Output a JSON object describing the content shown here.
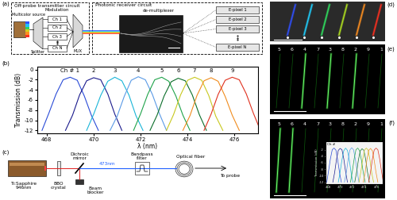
{
  "panel_labels": [
    "(a)",
    "(b)",
    "(c)",
    "(d)",
    "(e)",
    "(f)"
  ],
  "diagram_a": {
    "transmitter_title": "Off-probe transmitter circuit",
    "source": "Multicolor source",
    "modulation": "Modulation",
    "splitter": "Splitter",
    "channels": [
      "Ch 1",
      "Ch 2",
      "Ch 3",
      "Ch N"
    ],
    "mux": "MUX",
    "receiver_title": "Photonic receiver circuit",
    "demux": "de-multiplexer",
    "pixels": [
      "E-pixel 1",
      "E-pixel 2",
      "E-pixel 3",
      "E-pixel N"
    ]
  },
  "chart_data": {
    "type": "line",
    "xlabel": "λ (nm)",
    "ylabel": "Transmission (dB)",
    "xlim": [
      467.6,
      477.0
    ],
    "ylim": [
      -12.6,
      0.6
    ],
    "xticks": [
      468,
      470,
      472,
      474,
      476
    ],
    "yticks": [
      0,
      -2,
      -4,
      -6,
      -8,
      -10,
      -12
    ],
    "series": [
      {
        "name": "Ch # 1",
        "color": "#2a4bd7",
        "x": [
          467.8,
          468.1,
          468.4,
          468.7,
          469.0,
          469.3,
          469.6,
          469.9,
          470.2
        ],
        "values": [
          -12,
          -8.5,
          -4.8,
          -2.0,
          -1.5,
          -2.1,
          -5.2,
          -9.0,
          -12
        ]
      },
      {
        "name": "2",
        "color": "#1a1a8c",
        "x": [
          468.8,
          469.1,
          469.4,
          469.7,
          470.0,
          470.3,
          470.6,
          470.9,
          471.2
        ],
        "values": [
          -12,
          -9.0,
          -5.0,
          -2.2,
          -1.6,
          -2.0,
          -4.8,
          -8.8,
          -12
        ]
      },
      {
        "name": "3",
        "color": "#19b5d8",
        "x": [
          469.7,
          470.0,
          470.3,
          470.6,
          470.9,
          471.2,
          471.5,
          471.8,
          472.1
        ],
        "values": [
          -12,
          -8.8,
          -5.1,
          -2.3,
          -1.5,
          -2.2,
          -5.0,
          -9.1,
          -12
        ]
      },
      {
        "name": "4",
        "color": "#5a9ae6",
        "x": [
          470.7,
          471.0,
          471.3,
          471.6,
          471.9,
          472.2,
          472.5,
          472.8,
          473.1
        ],
        "values": [
          -12,
          -9.2,
          -5.3,
          -2.1,
          -1.4,
          -2.0,
          -4.9,
          -8.7,
          -12
        ]
      },
      {
        "name": "5",
        "color": "#1fa34a",
        "x": [
          471.7,
          472.0,
          472.3,
          472.6,
          472.9,
          473.2,
          473.5,
          473.8,
          474.1
        ],
        "values": [
          -12,
          -8.7,
          -4.9,
          -2.0,
          -1.5,
          -2.3,
          -5.2,
          -9.0,
          -12
        ]
      },
      {
        "name": "6",
        "color": "#0b6e2a",
        "x": [
          472.4,
          472.7,
          473.0,
          473.3,
          473.6,
          473.9,
          474.2,
          474.5,
          474.8
        ],
        "values": [
          -12,
          -9.0,
          -5.2,
          -2.4,
          -1.7,
          -2.2,
          -5.0,
          -8.9,
          -12
        ]
      },
      {
        "name": "7",
        "color": "#c8c81e",
        "x": [
          473.1,
          473.4,
          473.7,
          474.0,
          474.3,
          474.6,
          474.9,
          475.2,
          475.5
        ],
        "values": [
          -12,
          -8.9,
          -5.0,
          -2.1,
          -1.5,
          -2.1,
          -5.1,
          -9.2,
          -12
        ]
      },
      {
        "name": "8",
        "color": "#f08c1e",
        "x": [
          473.8,
          474.1,
          474.4,
          474.7,
          475.0,
          475.3,
          475.6,
          475.9,
          476.2
        ],
        "values": [
          -12,
          -9.1,
          -5.1,
          -2.2,
          -1.6,
          -2.3,
          -5.3,
          -9.0,
          -12
        ]
      },
      {
        "name": "9",
        "color": "#e0301e",
        "x": [
          474.7,
          475.0,
          475.3,
          475.6,
          475.9,
          476.2,
          476.5,
          476.8,
          477.1
        ],
        "values": [
          -12,
          -8.8,
          -4.9,
          -2.1,
          -1.5,
          -2.0,
          -4.8,
          -8.6,
          -12
        ]
      }
    ]
  },
  "diagram_c": {
    "laser": "Ti:Sapphire\n946nm",
    "crystal": "BBO\ncrystal",
    "mirror": "Dichroic\nmirror",
    "wavelength": "473nm",
    "blocker": "Beam\nblocker",
    "filter": "Bandpass\nfilter",
    "fiber": "Optical fiber",
    "output": "To probe"
  },
  "image_d": {
    "streak_colors": [
      "#3050ff",
      "#20d0ff",
      "#30e060",
      "#b0e020",
      "#ff9020",
      "#ff3020"
    ]
  },
  "image_e": {
    "channel_order": [
      "5",
      "6",
      "4",
      "7",
      "3",
      "8",
      "2",
      "9",
      "1"
    ],
    "lit": [
      "4",
      "3",
      "2"
    ]
  },
  "image_f": {
    "channel_order": [
      "5",
      "6",
      "4",
      "7",
      "3",
      "8",
      "2",
      "9",
      "1"
    ],
    "lit": [
      "5",
      "6"
    ],
    "inset": {
      "label": "Ch #",
      "ylabel": "Transmission (dB)",
      "xlim": [
        467.6,
        477.0
      ],
      "ylim": [
        -12.6,
        0.6
      ],
      "xticks": [
        468,
        470,
        472,
        474,
        476
      ],
      "yticks": [
        -12,
        -10,
        -8,
        -6,
        -4,
        -2
      ]
    }
  }
}
